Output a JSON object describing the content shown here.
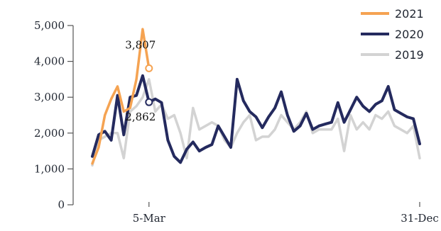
{
  "chart_data": {
    "type": "line",
    "title": "",
    "xlabel": "",
    "ylabel": "",
    "ylim": [
      0,
      5000
    ],
    "yticks": [
      {
        "value": 0,
        "label": "0"
      },
      {
        "value": 1000,
        "label": "1,000"
      },
      {
        "value": 2000,
        "label": "2,000"
      },
      {
        "value": 3000,
        "label": "3,000"
      },
      {
        "value": 4000,
        "label": "4,000"
      },
      {
        "value": 5000,
        "label": "5,000"
      }
    ],
    "xlim": [
      0,
      52
    ],
    "xticks": [
      {
        "week": 9,
        "label": "5-Mar"
      },
      {
        "week": 52,
        "label": "31-Dec"
      }
    ],
    "grid": false,
    "legend_position": "top-right",
    "series": [
      {
        "name": "2019",
        "color": "#d3d3d3",
        "weeks": [
          0,
          1,
          2,
          3,
          4,
          5,
          6,
          7,
          8,
          9,
          10,
          11,
          12,
          13,
          14,
          15,
          16,
          17,
          18,
          19,
          20,
          21,
          22,
          23,
          24,
          25,
          26,
          27,
          28,
          29,
          30,
          31,
          32,
          33,
          34,
          35,
          36,
          37,
          38,
          39,
          40,
          41,
          42,
          43,
          44,
          45,
          46,
          47,
          48,
          49,
          50,
          51,
          52
        ],
        "values": [
          1100,
          1800,
          1900,
          2000,
          2000,
          1300,
          2600,
          2750,
          3000,
          3500,
          2600,
          2800,
          2400,
          2500,
          2000,
          1300,
          2700,
          2100,
          2200,
          2300,
          2200,
          1800,
          1600,
          2000,
          2300,
          2500,
          1800,
          1900,
          1900,
          2100,
          2500,
          2300,
          2100,
          2300,
          2600,
          2000,
          2100,
          2100,
          2100,
          2400,
          1500,
          2500,
          2100,
          2300,
          2100,
          2500,
          2400,
          2600,
          2200,
          2100,
          2000,
          2200,
          1300
        ]
      },
      {
        "name": "2020",
        "color": "#242a5e",
        "weeks": [
          0,
          1,
          2,
          3,
          4,
          5,
          6,
          7,
          8,
          9,
          10,
          11,
          12,
          13,
          14,
          15,
          16,
          17,
          18,
          19,
          20,
          21,
          22,
          23,
          24,
          25,
          26,
          27,
          28,
          29,
          30,
          31,
          32,
          33,
          34,
          35,
          36,
          37,
          38,
          39,
          40,
          41,
          42,
          43,
          44,
          45,
          46,
          47,
          48,
          49,
          50,
          51,
          52
        ],
        "values": [
          1350,
          1950,
          2050,
          1800,
          3050,
          1950,
          3000,
          3050,
          3600,
          2862,
          2950,
          2850,
          1800,
          1350,
          1180,
          1550,
          1750,
          1500,
          1600,
          1680,
          2200,
          1900,
          1600,
          3500,
          2900,
          2600,
          2450,
          2150,
          2450,
          2700,
          3150,
          2500,
          2050,
          2200,
          2550,
          2100,
          2200,
          2250,
          2300,
          2850,
          2300,
          2650,
          3000,
          2750,
          2600,
          2800,
          2900,
          3300,
          2650,
          2550,
          2450,
          2400,
          1700
        ]
      },
      {
        "name": "2021",
        "color": "#f5a352",
        "weeks": [
          0,
          1,
          2,
          3,
          4,
          5,
          6,
          7,
          8,
          9
        ],
        "values": [
          1150,
          1600,
          2500,
          2950,
          3300,
          2600,
          2700,
          3500,
          4900,
          3807
        ]
      }
    ],
    "annotations": [
      {
        "series": "2021",
        "week": 9,
        "value": 3807,
        "label": "3,807"
      },
      {
        "series": "2020",
        "week": 9,
        "value": 2862,
        "label": "2,862"
      }
    ]
  }
}
